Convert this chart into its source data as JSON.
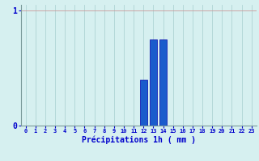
{
  "title": "",
  "xlabel": "Précipitations 1h ( mm )",
  "ylabel": "",
  "background_color": "#d6f0f0",
  "bar_color": "#1a5ccc",
  "bar_edge_color": "#0000aa",
  "grid_color": "#aed4d4",
  "axis_color": "#7a9999",
  "tick_label_color": "#0000cc",
  "hours": [
    0,
    1,
    2,
    3,
    4,
    5,
    6,
    7,
    8,
    9,
    10,
    11,
    12,
    13,
    14,
    15,
    16,
    17,
    18,
    19,
    20,
    21,
    22,
    23
  ],
  "values": [
    0,
    0,
    0,
    0,
    0,
    0,
    0,
    0,
    0,
    0,
    0,
    0,
    0.4,
    0.75,
    0.75,
    0,
    0,
    0,
    0,
    0,
    0,
    0,
    0,
    0
  ],
  "ylim": [
    0,
    1.05
  ],
  "yticks": [
    0,
    1
  ],
  "ytick_labels": [
    "0",
    "1"
  ],
  "xlim": [
    -0.5,
    23.5
  ],
  "figsize": [
    3.2,
    2.0
  ],
  "dpi": 100
}
